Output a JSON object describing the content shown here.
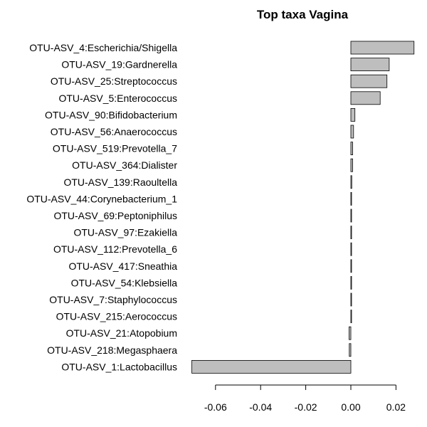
{
  "chart_data": {
    "type": "bar",
    "orientation": "horizontal",
    "title": "Top taxa Vagina",
    "xlabel": "",
    "ylabel": "",
    "xlim": [
      -0.0705,
      0.0285
    ],
    "x_ticks": [
      -0.06,
      -0.04,
      -0.02,
      0.0,
      0.02
    ],
    "x_tick_labels": [
      "-0.06",
      "-0.04",
      "-0.02",
      "0.00",
      "0.02"
    ],
    "bar_color": "#bebebe",
    "grid": false,
    "categories": [
      "OTU-ASV_4:Escherichia/Shigella",
      "OTU-ASV_19:Gardnerella",
      "OTU-ASV_25:Streptococcus",
      "OTU-ASV_5:Enterococcus",
      "OTU-ASV_90:Bifidobacterium",
      "OTU-ASV_56:Anaerococcus",
      "OTU-ASV_519:Prevotella_7",
      "OTU-ASV_364:Dialister",
      "OTU-ASV_139:Raoultella",
      "OTU-ASV_44:Corynebacterium_1",
      "OTU-ASV_69:Peptoniphilus",
      "OTU-ASV_97:Ezakiella",
      "OTU-ASV_112:Prevotella_6",
      "OTU-ASV_417:Sneathia",
      "OTU-ASV_54:Klebsiella",
      "OTU-ASV_7:Staphylococcus",
      "OTU-ASV_215:Aerococcus",
      "OTU-ASV_21:Atopobium",
      "OTU-ASV_218:Megasphaera",
      "OTU-ASV_1:Lactobacillus"
    ],
    "values": [
      0.028,
      0.017,
      0.016,
      0.013,
      0.0018,
      0.0012,
      0.0008,
      0.0008,
      0.0004,
      0.0002,
      0.0002,
      0.0002,
      0.0002,
      0.0002,
      0.0002,
      0.0002,
      0.0002,
      -0.0008,
      -0.0007,
      -0.0705
    ]
  }
}
